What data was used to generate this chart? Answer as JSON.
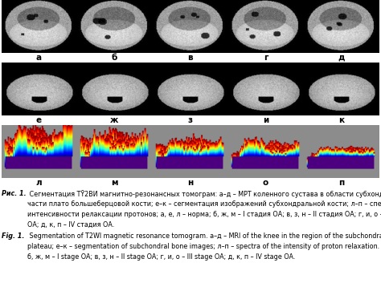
{
  "background_color": "#ffffff",
  "row1_labels": [
    "а",
    "б",
    "в",
    "г",
    "д"
  ],
  "row2_labels": [
    "е",
    "ж",
    "з",
    "и",
    "к"
  ],
  "row3_labels": [
    "л",
    "м",
    "н",
    "о",
    "п"
  ],
  "caption_fontsize": 5.8,
  "label_fontsize": 7.5,
  "figsize": [
    4.74,
    3.58
  ],
  "dpi": 100
}
